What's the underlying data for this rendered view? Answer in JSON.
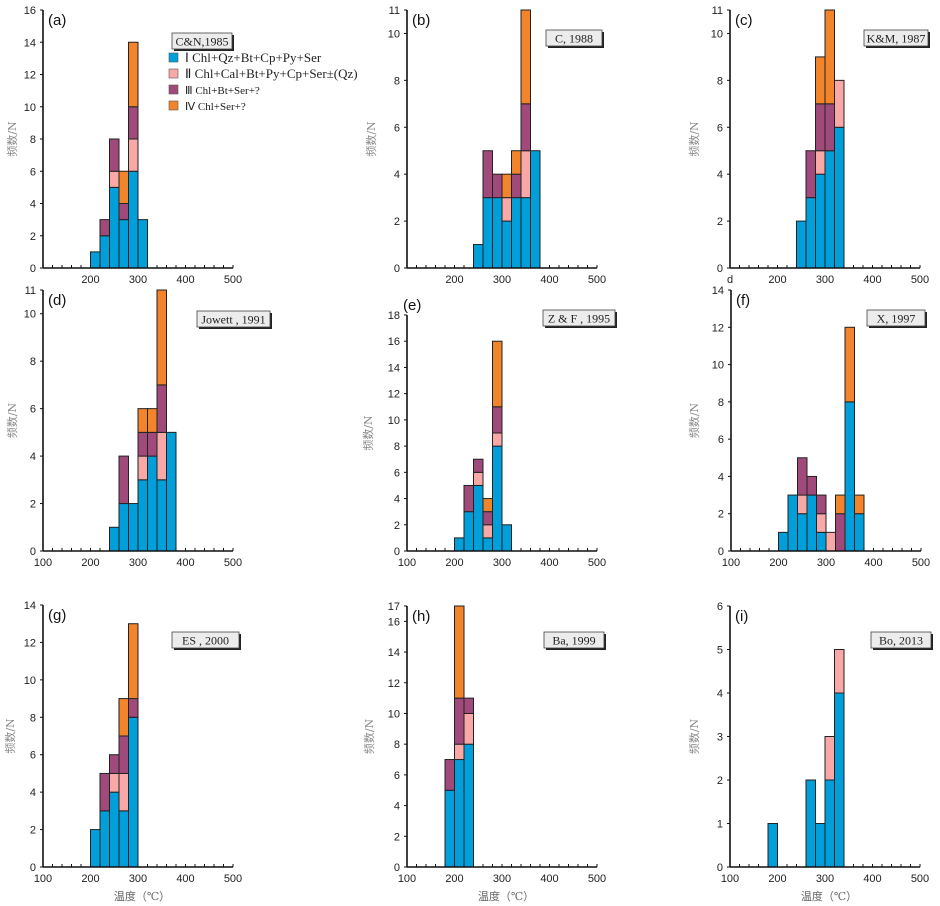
{
  "chart_data": {
    "type": "bar",
    "stacked": true,
    "xlabel": "温度（℃）",
    "ylabel": "频数/N",
    "bin_width": 20,
    "legend": {
      "placement": "panel-a-top-right",
      "entries": [
        {
          "key": "I",
          "numeral": "Ⅰ",
          "label": "Chl+Qz+Bt+Cp+Py+Ser",
          "color": "#009fd9"
        },
        {
          "key": "II",
          "numeral": "Ⅱ",
          "label": "Chl+Cal+Bt+Py+Cp+Ser±(Qz)",
          "color": "#f8a9a7"
        },
        {
          "key": "III",
          "numeral": "Ⅲ",
          "label": "Chl+Bt+Ser+?",
          "color": "#a04a7c"
        },
        {
          "key": "IV",
          "numeral": "Ⅳ",
          "label": "Chl+Ser+?",
          "color": "#f2842c"
        }
      ]
    },
    "panels": [
      {
        "id": "a",
        "label": "(a)",
        "citation": "C&N,1985",
        "ylim": [
          0,
          16
        ],
        "yticks": [
          0,
          2,
          4,
          6,
          8,
          10,
          12,
          14,
          16
        ],
        "xlim": [
          100,
          500
        ],
        "xtick_labels": [
          "",
          "200",
          "300",
          "400",
          "500"
        ],
        "show_xlabel": false,
        "bins": [
          {
            "start": 200,
            "I": 1,
            "II": 0,
            "III": 0,
            "IV": 0
          },
          {
            "start": 220,
            "I": 2,
            "II": 0,
            "III": 1,
            "IV": 0
          },
          {
            "start": 240,
            "I": 5,
            "II": 1,
            "III": 2,
            "IV": 0
          },
          {
            "start": 260,
            "I": 3,
            "II": 0,
            "III": 1,
            "IV": 2
          },
          {
            "start": 280,
            "I": 6,
            "II": 2,
            "III": 2,
            "IV": 4
          },
          {
            "start": 300,
            "I": 3,
            "II": 0,
            "III": 0,
            "IV": 0
          }
        ]
      },
      {
        "id": "b",
        "label": "(b)",
        "citation": "C, 1988",
        "ylim": [
          0,
          11
        ],
        "yticks": [
          0,
          2,
          4,
          6,
          8,
          10,
          11
        ],
        "xlim": [
          100,
          500
        ],
        "xtick_labels": [
          "",
          "200",
          "300",
          "400",
          "500"
        ],
        "show_xlabel": false,
        "bins": [
          {
            "start": 240,
            "I": 1,
            "II": 0,
            "III": 0,
            "IV": 0
          },
          {
            "start": 260,
            "I": 3,
            "II": 0,
            "III": 2,
            "IV": 0
          },
          {
            "start": 280,
            "I": 3,
            "II": 0,
            "III": 1,
            "IV": 0
          },
          {
            "start": 300,
            "I": 2,
            "II": 1,
            "III": 0,
            "IV": 1
          },
          {
            "start": 320,
            "I": 3,
            "II": 0,
            "III": 1,
            "IV": 1
          },
          {
            "start": 340,
            "I": 3,
            "II": 2,
            "III": 2,
            "IV": 4
          },
          {
            "start": 360,
            "I": 5,
            "II": 0,
            "III": 0,
            "IV": 0
          }
        ]
      },
      {
        "id": "c",
        "label": "(c)",
        "citation": "K&M, 1987",
        "ylim": [
          0,
          11
        ],
        "yticks": [
          0,
          2,
          4,
          6,
          8,
          10,
          11
        ],
        "xlim": [
          100,
          500
        ],
        "xtick_labels": [
          "d",
          "200",
          "300",
          "400",
          "500"
        ],
        "show_xlabel": false,
        "bins": [
          {
            "start": 240,
            "I": 2,
            "II": 0,
            "III": 0,
            "IV": 0
          },
          {
            "start": 260,
            "I": 3,
            "II": 0,
            "III": 2,
            "IV": 0
          },
          {
            "start": 280,
            "I": 4,
            "II": 1,
            "III": 2,
            "IV": 2
          },
          {
            "start": 300,
            "I": 5,
            "II": 0,
            "III": 2,
            "IV": 4
          },
          {
            "start": 320,
            "I": 6,
            "II": 2,
            "III": 0,
            "IV": 0
          }
        ]
      },
      {
        "id": "d",
        "label": "(d)",
        "citation": "Jowett , 1991",
        "ylim": [
          0,
          11
        ],
        "yticks": [
          0,
          2,
          4,
          6,
          8,
          10,
          11
        ],
        "xlim": [
          100,
          500
        ],
        "xtick_labels": [
          "100",
          "200",
          "300",
          "400",
          "500"
        ],
        "show_xlabel": false,
        "bins": [
          {
            "start": 240,
            "I": 1,
            "II": 0,
            "III": 0,
            "IV": 0
          },
          {
            "start": 260,
            "I": 2,
            "II": 0,
            "III": 2,
            "IV": 0
          },
          {
            "start": 280,
            "I": 2,
            "II": 0,
            "III": 0,
            "IV": 0
          },
          {
            "start": 300,
            "I": 3,
            "II": 1,
            "III": 1,
            "IV": 1
          },
          {
            "start": 320,
            "I": 4,
            "II": 0,
            "III": 1,
            "IV": 1
          },
          {
            "start": 340,
            "I": 3,
            "II": 2,
            "III": 2,
            "IV": 4
          },
          {
            "start": 360,
            "I": 5,
            "II": 0,
            "III": 0,
            "IV": 0
          }
        ]
      },
      {
        "id": "e",
        "label": "(e)",
        "citation": "Z & F , 1995",
        "ylim": [
          0,
          18
        ],
        "yticks": [
          0,
          2,
          4,
          6,
          8,
          10,
          12,
          14,
          16,
          18
        ],
        "xlim": [
          100,
          500
        ],
        "xtick_labels": [
          "100",
          "200",
          "300",
          "400",
          "500"
        ],
        "show_xlabel": false,
        "bins": [
          {
            "start": 200,
            "I": 1,
            "II": 0,
            "III": 0,
            "IV": 0
          },
          {
            "start": 220,
            "I": 3,
            "II": 0,
            "III": 2,
            "IV": 0
          },
          {
            "start": 240,
            "I": 5,
            "II": 1,
            "III": 1,
            "IV": 0
          },
          {
            "start": 260,
            "I": 1,
            "II": 1,
            "III": 1,
            "IV": 1
          },
          {
            "start": 280,
            "I": 8,
            "II": 1,
            "III": 2,
            "IV": 5
          },
          {
            "start": 300,
            "I": 2,
            "II": 0,
            "III": 0,
            "IV": 0
          }
        ]
      },
      {
        "id": "f",
        "label": "(f)",
        "citation": "X, 1997",
        "ylim": [
          0,
          14
        ],
        "yticks": [
          0,
          2,
          4,
          6,
          8,
          10,
          12,
          14
        ],
        "xlim": [
          100,
          500
        ],
        "xtick_labels": [
          "100",
          "200",
          "300",
          "400",
          "500"
        ],
        "show_xlabel": false,
        "bins": [
          {
            "start": 200,
            "I": 1,
            "II": 0,
            "III": 0,
            "IV": 0
          },
          {
            "start": 220,
            "I": 3,
            "II": 0,
            "III": 0,
            "IV": 0
          },
          {
            "start": 240,
            "I": 2,
            "II": 1,
            "III": 2,
            "IV": 0
          },
          {
            "start": 260,
            "I": 3,
            "II": 0,
            "III": 1,
            "IV": 0
          },
          {
            "start": 280,
            "I": 1,
            "II": 1,
            "III": 1,
            "IV": 0
          },
          {
            "start": 300,
            "I": 0,
            "II": 1,
            "III": 0,
            "IV": 0
          },
          {
            "start": 320,
            "I": 0,
            "II": 0,
            "III": 2,
            "IV": 1
          },
          {
            "start": 340,
            "I": 8,
            "II": 0,
            "III": 0,
            "IV": 4
          },
          {
            "start": 360,
            "I": 2,
            "II": 0,
            "III": 0,
            "IV": 1
          }
        ]
      },
      {
        "id": "g",
        "label": "(g)",
        "citation": "ES , 2000",
        "ylim": [
          0,
          14
        ],
        "yticks": [
          0,
          2,
          4,
          6,
          8,
          10,
          12,
          14
        ],
        "xlim": [
          100,
          500
        ],
        "xtick_labels": [
          "100",
          "200",
          "300",
          "400",
          "500"
        ],
        "show_xlabel": true,
        "bins": [
          {
            "start": 200,
            "I": 2,
            "II": 0,
            "III": 0,
            "IV": 0
          },
          {
            "start": 220,
            "I": 3,
            "II": 0,
            "III": 2,
            "IV": 0
          },
          {
            "start": 240,
            "I": 4,
            "II": 1,
            "III": 1,
            "IV": 0
          },
          {
            "start": 260,
            "I": 3,
            "II": 2,
            "III": 2,
            "IV": 2
          },
          {
            "start": 280,
            "I": 8,
            "II": 0,
            "III": 1,
            "IV": 4
          }
        ]
      },
      {
        "id": "h",
        "label": "(h)",
        "citation": "Ba, 1999",
        "ylim": [
          0,
          17
        ],
        "yticks": [
          0,
          2,
          4,
          6,
          8,
          10,
          12,
          14,
          16,
          17
        ],
        "xlim": [
          100,
          500
        ],
        "xtick_labels": [
          "100",
          "200",
          "300",
          "400",
          "500"
        ],
        "show_xlabel": true,
        "bins": [
          {
            "start": 180,
            "I": 5,
            "II": 0,
            "III": 2,
            "IV": 0
          },
          {
            "start": 200,
            "I": 7,
            "II": 1,
            "III": 3,
            "IV": 6
          },
          {
            "start": 220,
            "I": 8,
            "II": 2,
            "III": 1,
            "IV": 0
          }
        ]
      },
      {
        "id": "i",
        "label": "(i)",
        "citation": "Bo, 2013",
        "ylim": [
          0,
          6
        ],
        "yticks": [
          0,
          1,
          2,
          3,
          4,
          5,
          6
        ],
        "xlim": [
          100,
          500
        ],
        "xtick_labels": [
          "100",
          "200",
          "300",
          "400",
          "500"
        ],
        "show_xlabel": true,
        "bins": [
          {
            "start": 180,
            "I": 1,
            "II": 0,
            "III": 0,
            "IV": 0
          },
          {
            "start": 260,
            "I": 2,
            "II": 0,
            "III": 0,
            "IV": 0
          },
          {
            "start": 280,
            "I": 1,
            "II": 0,
            "III": 0,
            "IV": 0
          },
          {
            "start": 300,
            "I": 2,
            "II": 1,
            "III": 0,
            "IV": 0
          },
          {
            "start": 320,
            "I": 4,
            "II": 1,
            "III": 0,
            "IV": 0
          }
        ]
      }
    ]
  }
}
